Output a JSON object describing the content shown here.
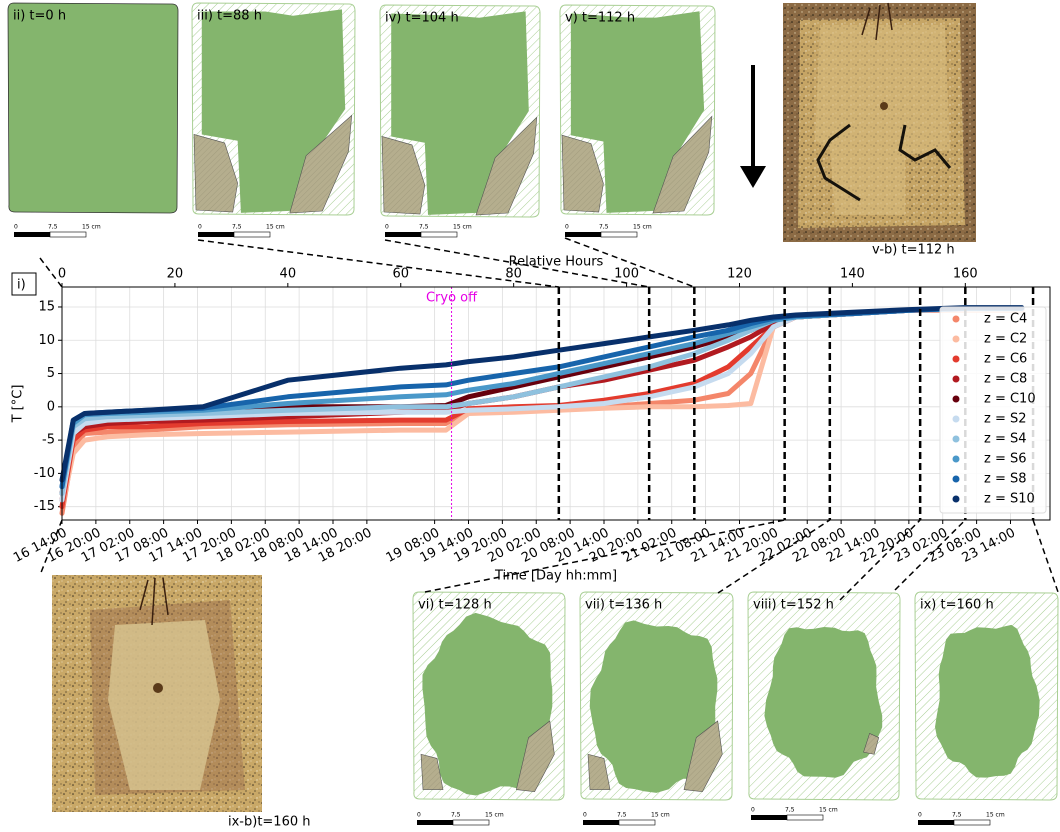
{
  "figure_labels": {
    "panel_i": "i)",
    "top_panels": [
      "ii) t=0 h",
      "iii) t=88 h",
      "iv) t=104 h",
      "v) t=112 h"
    ],
    "photo_top": "v-b) t=112 h",
    "bottom_panels": [
      "vi) t=128 h",
      "vii) t=136 h",
      "viii) t=152 h",
      "ix) t=160 h"
    ],
    "photo_bottom": "ix-b)t=160 h",
    "scale_bar": [
      "0",
      "7,5",
      "15 cm"
    ]
  },
  "chart_data": {
    "type": "line",
    "x_label": "Time [Day hh:mm]",
    "x2_label": "Relative Hours",
    "y_label": "T [°C]",
    "x": [
      0,
      2,
      4,
      8,
      15,
      25,
      40,
      60,
      68,
      72,
      80,
      88,
      96,
      104,
      112,
      118,
      122,
      126,
      130,
      140,
      150,
      160,
      170
    ],
    "series": [
      {
        "name": "z = C4",
        "color": "#f4866a",
        "values": [
          -16,
          -6,
          -4,
          -3.8,
          -3.5,
          -3,
          -2.7,
          -2.5,
          -2.5,
          -0.5,
          -0.3,
          0,
          0,
          0.5,
          1,
          2,
          5,
          12,
          13.5,
          14,
          14.5,
          14.5,
          14.5
        ]
      },
      {
        "name": "z = C2",
        "color": "#fcbba1",
        "values": [
          -15,
          -7,
          -5,
          -4.5,
          -4.2,
          -4,
          -3.8,
          -3.5,
          -3.5,
          -1,
          -0.8,
          -0.5,
          -0.2,
          0,
          0,
          0.2,
          0.5,
          12,
          13.5,
          14,
          14.5,
          14.5,
          14.5
        ]
      },
      {
        "name": "z = C6",
        "color": "#e33b2e",
        "values": [
          -15,
          -5,
          -3.5,
          -3,
          -3,
          -2.5,
          -2.2,
          -2,
          -2,
          -0.3,
          0,
          0.2,
          1,
          2,
          3.5,
          6,
          9,
          12,
          13.5,
          14,
          14.5,
          14.7,
          14.7
        ]
      },
      {
        "name": "z = C8",
        "color": "#b11a20",
        "values": [
          -14,
          -4,
          -3,
          -2.5,
          -2.2,
          -2,
          -1.5,
          -0.8,
          -0.5,
          0.5,
          1.5,
          3,
          4,
          5.5,
          7,
          9,
          10.5,
          12.5,
          13.5,
          14,
          14.5,
          14.7,
          14.7
        ]
      },
      {
        "name": "z = C10",
        "color": "#67000d",
        "values": [
          -13,
          -3,
          -1.5,
          -1,
          -0.8,
          -0.5,
          0,
          0,
          0.2,
          1.5,
          3,
          4.5,
          6,
          7.5,
          9,
          10.5,
          11.5,
          13,
          13.5,
          14,
          14.5,
          14.8,
          14.8
        ]
      },
      {
        "name": "z = S2",
        "color": "#c6dbef",
        "values": [
          -14,
          -4,
          -2.5,
          -2,
          -1.8,
          -1.5,
          -1,
          -0.8,
          -0.8,
          -0.5,
          -0.3,
          0,
          0.5,
          1.5,
          3,
          5,
          8,
          12,
          13.5,
          14,
          14.5,
          14.7,
          14.7
        ]
      },
      {
        "name": "z = S4",
        "color": "#8fc1de",
        "values": [
          -13,
          -3,
          -1.8,
          -1.5,
          -1.3,
          -1,
          -0.5,
          0,
          0,
          0.5,
          1.5,
          3,
          4.5,
          6,
          8,
          10,
          11.5,
          13,
          13.5,
          14,
          14.5,
          14.8,
          14.8
        ]
      },
      {
        "name": "z = S6",
        "color": "#4a98c9",
        "values": [
          -12,
          -2.5,
          -1.2,
          -1,
          -0.8,
          -0.5,
          0.5,
          1.5,
          1.8,
          2.5,
          3.5,
          5,
          6.5,
          8,
          9.5,
          11,
          12,
          13,
          13.5,
          14,
          14.5,
          14.8,
          14.8
        ]
      },
      {
        "name": "z = S8",
        "color": "#1764ab",
        "values": [
          -12,
          -2,
          -1,
          -0.8,
          -0.5,
          -0.2,
          1.5,
          3,
          3.3,
          4,
          5,
          6,
          7.5,
          9,
          10.5,
          11.5,
          12.5,
          13.3,
          13.7,
          14,
          14.5,
          14.8,
          14.8
        ]
      },
      {
        "name": "z = S10",
        "color": "#08306b",
        "values": [
          -11,
          -2,
          -1,
          -0.8,
          -0.5,
          0,
          4,
          5.8,
          6.3,
          6.8,
          7.5,
          8.5,
          9.5,
          10.5,
          11.5,
          12.3,
          13,
          13.5,
          13.8,
          14.2,
          14.6,
          14.9,
          14.9
        ]
      }
    ],
    "xlim": [
      0,
      175
    ],
    "ylim": [
      -17,
      18
    ],
    "yticks": [
      -15,
      -10,
      -5,
      0,
      5,
      10,
      15
    ],
    "xticks": [
      {
        "value": 0,
        "label": "16 14:00"
      },
      {
        "value": 6,
        "label": "16 20:00"
      },
      {
        "value": 12,
        "label": "17 02:00"
      },
      {
        "value": 18,
        "label": "17 08:00"
      },
      {
        "value": 24,
        "label": "17 14:00"
      },
      {
        "value": 30,
        "label": "17 20:00"
      },
      {
        "value": 36,
        "label": "18 02:00"
      },
      {
        "value": 42,
        "label": "18 08:00"
      },
      {
        "value": 48,
        "label": "18 14:00"
      },
      {
        "value": 54,
        "label": "18 20:00"
      },
      {
        "value": 66,
        "label": "19 08:00"
      },
      {
        "value": 72,
        "label": "19 14:00"
      },
      {
        "value": 78,
        "label": "19 20:00"
      },
      {
        "value": 84,
        "label": "20 02:00"
      },
      {
        "value": 90,
        "label": "20 08:00"
      },
      {
        "value": 96,
        "label": "20 14:00"
      },
      {
        "value": 102,
        "label": "20 20:00"
      },
      {
        "value": 108,
        "label": "21 02:00"
      },
      {
        "value": 114,
        "label": "21 08:00"
      },
      {
        "value": 120,
        "label": "21 14:00"
      },
      {
        "value": 126,
        "label": "21 20:00"
      },
      {
        "value": 132,
        "label": "22 02:00"
      },
      {
        "value": 138,
        "label": "22 08:00"
      },
      {
        "value": 144,
        "label": "22 14:00"
      },
      {
        "value": 150,
        "label": "22 20:00"
      },
      {
        "value": 156,
        "label": "23 02:00"
      },
      {
        "value": 162,
        "label": "23 08:00"
      },
      {
        "value": 168,
        "label": "23 14:00"
      }
    ],
    "x2ticks": [
      0,
      20,
      40,
      60,
      80,
      100,
      120,
      140,
      160
    ],
    "grid": true,
    "legend": "center right",
    "annotation": {
      "text": "Cryo off",
      "x": 69,
      "color": "#e600e6"
    },
    "event_lines": [
      88,
      104,
      112,
      128,
      136,
      152,
      160,
      172
    ]
  }
}
